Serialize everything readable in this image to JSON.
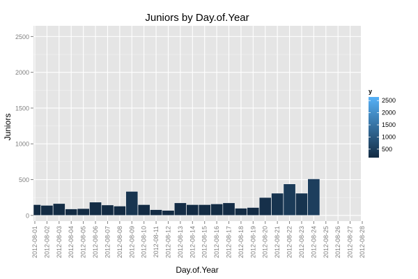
{
  "chart_data": {
    "type": "bar",
    "title": "Juniors by Day.of.Year",
    "xlabel": "Day.of.Year",
    "ylabel": "Juniors",
    "ylim": [
      -80,
      2650
    ],
    "yticks": [
      0,
      500,
      1000,
      1500,
      2000,
      2500
    ],
    "ytick_labels": [
      "0",
      "500",
      "1000",
      "1500",
      "2000",
      "2500"
    ],
    "categories": [
      "2012-08-01",
      "2012-08-02",
      "2012-08-03",
      "2012-08-04",
      "2012-08-05",
      "2012-08-06",
      "2012-08-07",
      "2012-08-08",
      "2012-08-09",
      "2012-08-10",
      "2012-08-11",
      "2012-08-12",
      "2012-08-13",
      "2012-08-14",
      "2012-08-15",
      "2012-08-16",
      "2012-08-17",
      "2012-08-18",
      "2012-08-19",
      "2012-08-20",
      "2012-08-21",
      "2012-08-22",
      "2012-08-23",
      "2012-08-24",
      "2012-08-25",
      "2012-08-26",
      "2012-08-27",
      "2012-08-28"
    ],
    "values": [
      150,
      140,
      165,
      90,
      95,
      185,
      145,
      130,
      335,
      150,
      80,
      70,
      175,
      150,
      150,
      160,
      175,
      100,
      110,
      250,
      310,
      440,
      310,
      510,
      null,
      null,
      null,
      null
    ],
    "grid": true,
    "legend": {
      "title": "y",
      "position": "right",
      "ticks": [
        500,
        1000,
        1500,
        2000,
        2500
      ],
      "tick_labels": [
        "500",
        "1000",
        "1500",
        "2000",
        "2500"
      ],
      "range": [
        150,
        2650
      ],
      "color_low": "#132B43",
      "color_high": "#56B1F7"
    },
    "colors": {
      "panel_bg": "#E5E5E5",
      "grid_major": "#FFFFFF",
      "grid_minor": "#F2F2F2",
      "bar_outline": "#FFFFFF"
    }
  }
}
